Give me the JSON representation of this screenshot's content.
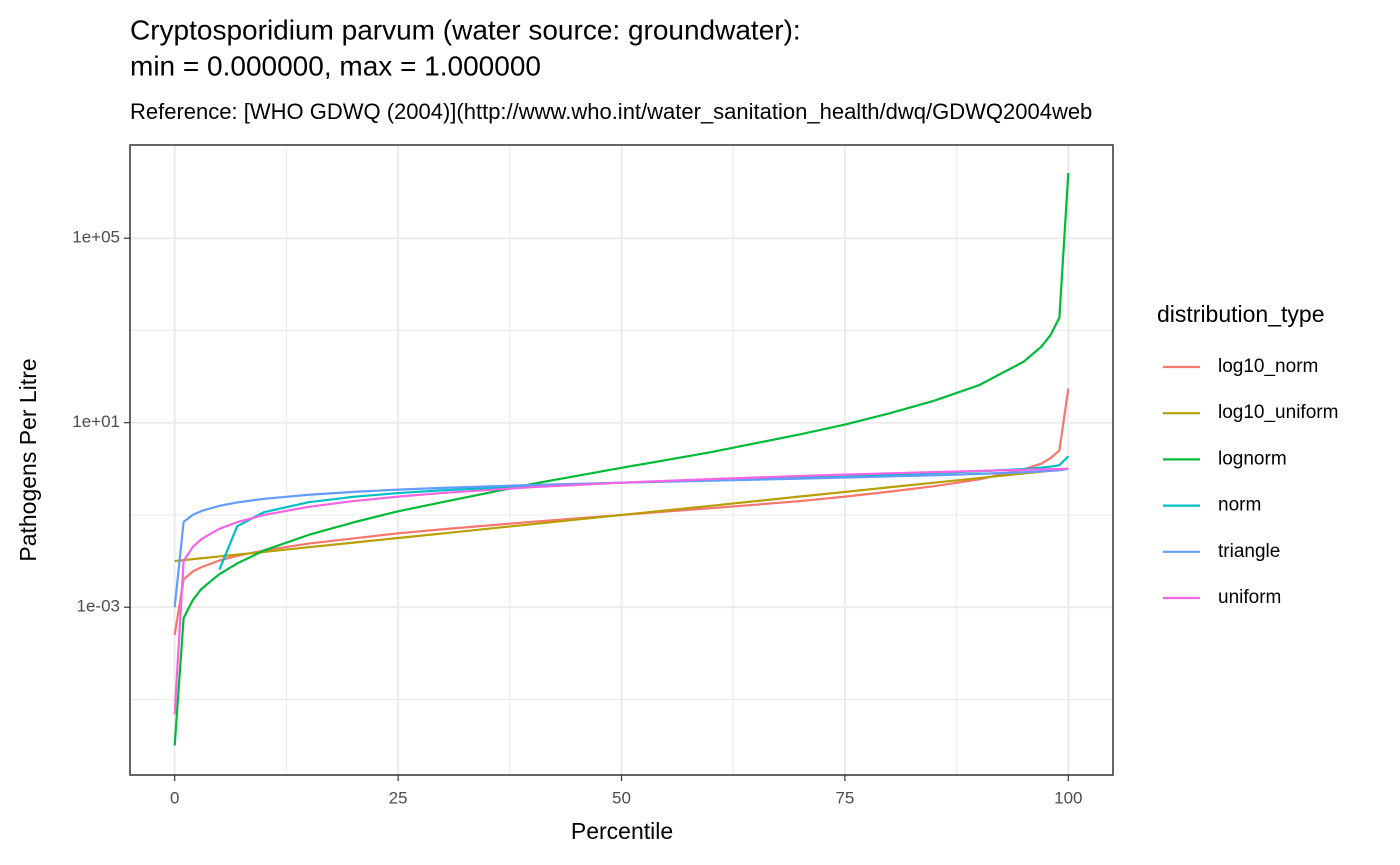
{
  "chart_data": {
    "type": "line",
    "title": [
      "Cryptosporidium parvum (water source: groundwater):",
      "min = 0.000000, max = 1.000000"
    ],
    "subtitle": "Reference: [WHO GDWQ (2004)](http://www.who.int/water_sanitation_health/dwq/GDWQ2004web",
    "x_label": "Percentile",
    "y_label": "Pathogens Per Litre",
    "legend_title": "distribution_type",
    "legend_position": "right",
    "log_y": true,
    "grid": true,
    "x": [
      0,
      1,
      2,
      3,
      5,
      7,
      10,
      15,
      20,
      25,
      30,
      40,
      50,
      60,
      70,
      75,
      80,
      85,
      90,
      95,
      97,
      98,
      99,
      100
    ],
    "xlim": [
      -5,
      105
    ],
    "xticks": [
      0,
      25,
      50,
      75,
      100
    ],
    "ylim": [
      2.3e-07,
      10500000.0
    ],
    "yticks": [
      {
        "value": 0.001,
        "label": "1e-03"
      },
      {
        "value": 10,
        "label": "1e+01"
      },
      {
        "value": 100000,
        "label": "1e+05"
      }
    ],
    "series": [
      {
        "name": "log10_norm",
        "color": "#F8766D",
        "values": [
          0.00025,
          0.004,
          0.0059,
          0.0074,
          0.0103,
          0.013,
          0.017,
          0.024,
          0.031,
          0.04,
          0.049,
          0.071,
          0.1,
          0.14,
          0.2,
          0.25,
          0.32,
          0.42,
          0.59,
          0.98,
          1.3,
          1.7,
          2.5,
          55
        ]
      },
      {
        "name": "log10_uniform",
        "color": "#B79F00",
        "values": [
          0.01,
          0.0105,
          0.011,
          0.0115,
          0.0126,
          0.0138,
          0.0158,
          0.02,
          0.0251,
          0.0316,
          0.0398,
          0.0631,
          0.1,
          0.158,
          0.251,
          0.316,
          0.398,
          0.501,
          0.631,
          0.794,
          0.871,
          0.912,
          0.955,
          1
        ]
      },
      {
        "name": "lognorm",
        "color": "#00BA38",
        "values": [
          1e-06,
          0.00058,
          0.0014,
          0.0025,
          0.0052,
          0.0089,
          0.017,
          0.037,
          0.069,
          0.12,
          0.19,
          0.47,
          1.05,
          2.3,
          5.6,
          9.1,
          16,
          30,
          65,
          210,
          450,
          790,
          1900,
          2600000
        ]
      },
      {
        "name": "norm",
        "color": "#00BFC4",
        "values": [
          null,
          null,
          null,
          null,
          0.0065,
          0.057,
          0.115,
          0.189,
          0.247,
          0.298,
          0.343,
          0.424,
          0.5,
          0.576,
          0.657,
          0.702,
          0.753,
          0.811,
          0.885,
          0.994,
          1.064,
          1.116,
          1.198,
          1.871
        ]
      },
      {
        "name": "triangle",
        "color": "#619CFF",
        "values": [
          0.001,
          0.0707,
          0.1,
          0.122,
          0.158,
          0.187,
          0.224,
          0.274,
          0.316,
          0.354,
          0.387,
          0.447,
          0.5,
          0.553,
          0.613,
          0.646,
          0.684,
          0.726,
          0.776,
          0.842,
          0.878,
          0.9,
          0.929,
          1
        ]
      },
      {
        "name": "uniform",
        "color": "#F564E3",
        "values": [
          4.7e-06,
          0.01,
          0.02,
          0.03,
          0.05,
          0.07,
          0.1,
          0.15,
          0.2,
          0.25,
          0.3,
          0.4,
          0.5,
          0.6,
          0.7,
          0.75,
          0.8,
          0.85,
          0.9,
          0.95,
          0.97,
          0.98,
          0.99,
          1
        ]
      }
    ]
  }
}
